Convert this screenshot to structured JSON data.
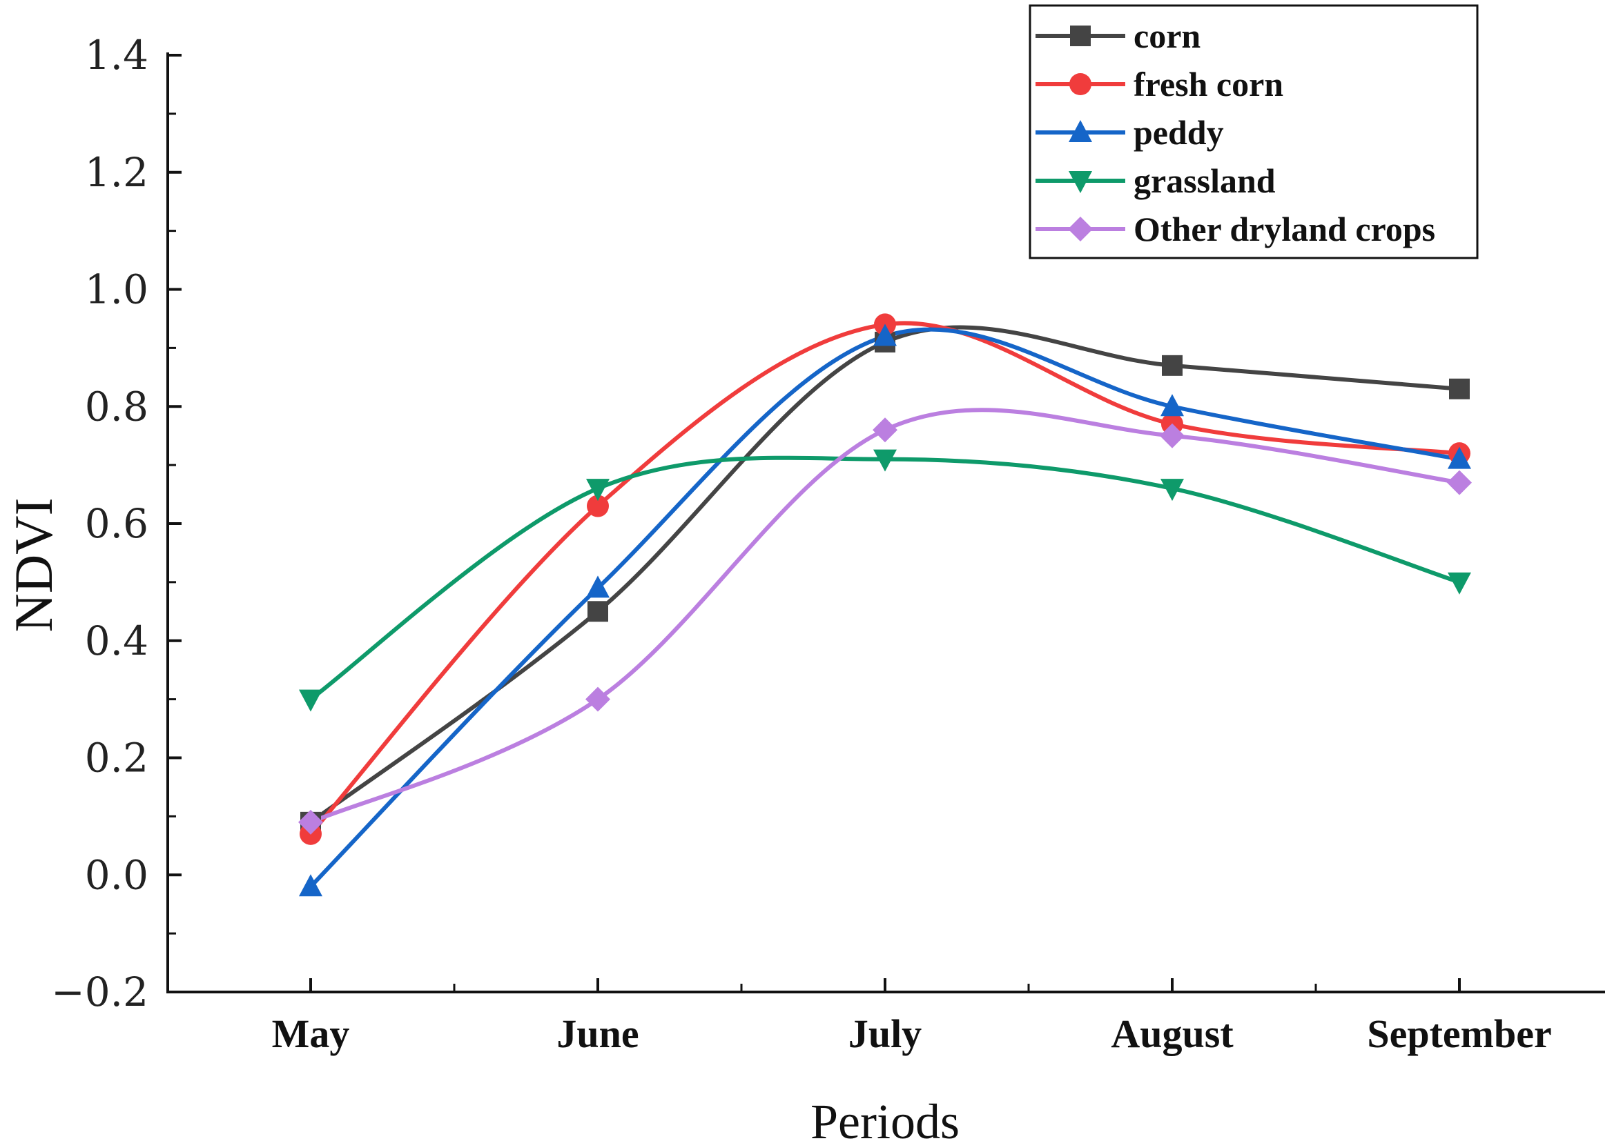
{
  "chart_data": {
    "type": "line",
    "title": "",
    "xlabel": "Periods",
    "ylabel": "NDVI",
    "categories": [
      "May",
      "June",
      "July",
      "August",
      "September"
    ],
    "ylim": [
      -0.2,
      1.4
    ],
    "yticks": [
      "−0.2",
      "0.0",
      "0.2",
      "0.4",
      "0.6",
      "0.8",
      "1.0",
      "1.2",
      "1.4"
    ],
    "ytick_values": [
      -0.2,
      0.0,
      0.2,
      0.4,
      0.6,
      0.8,
      1.0,
      1.2,
      1.4
    ],
    "legend_position": "top-right",
    "smooth": true,
    "grid": false,
    "series": [
      {
        "name": "corn",
        "color": "#444444",
        "marker": "square",
        "values": [
          0.09,
          0.45,
          0.91,
          0.87,
          0.83
        ]
      },
      {
        "name": "fresh corn",
        "color": "#f03c3c",
        "marker": "circle",
        "values": [
          0.07,
          0.63,
          0.94,
          0.77,
          0.72
        ]
      },
      {
        "name": "peddy",
        "color": "#1565c8",
        "marker": "triangle-up",
        "values": [
          -0.02,
          0.49,
          0.92,
          0.8,
          0.71
        ]
      },
      {
        "name": "grassland",
        "color": "#0e9a6a",
        "marker": "triangle-down",
        "values": [
          0.3,
          0.66,
          0.71,
          0.66,
          0.5
        ]
      },
      {
        "name": "Other dryland crops",
        "color": "#bb7fe0",
        "marker": "diamond",
        "values": [
          0.09,
          0.3,
          0.76,
          0.75,
          0.67
        ]
      }
    ]
  }
}
